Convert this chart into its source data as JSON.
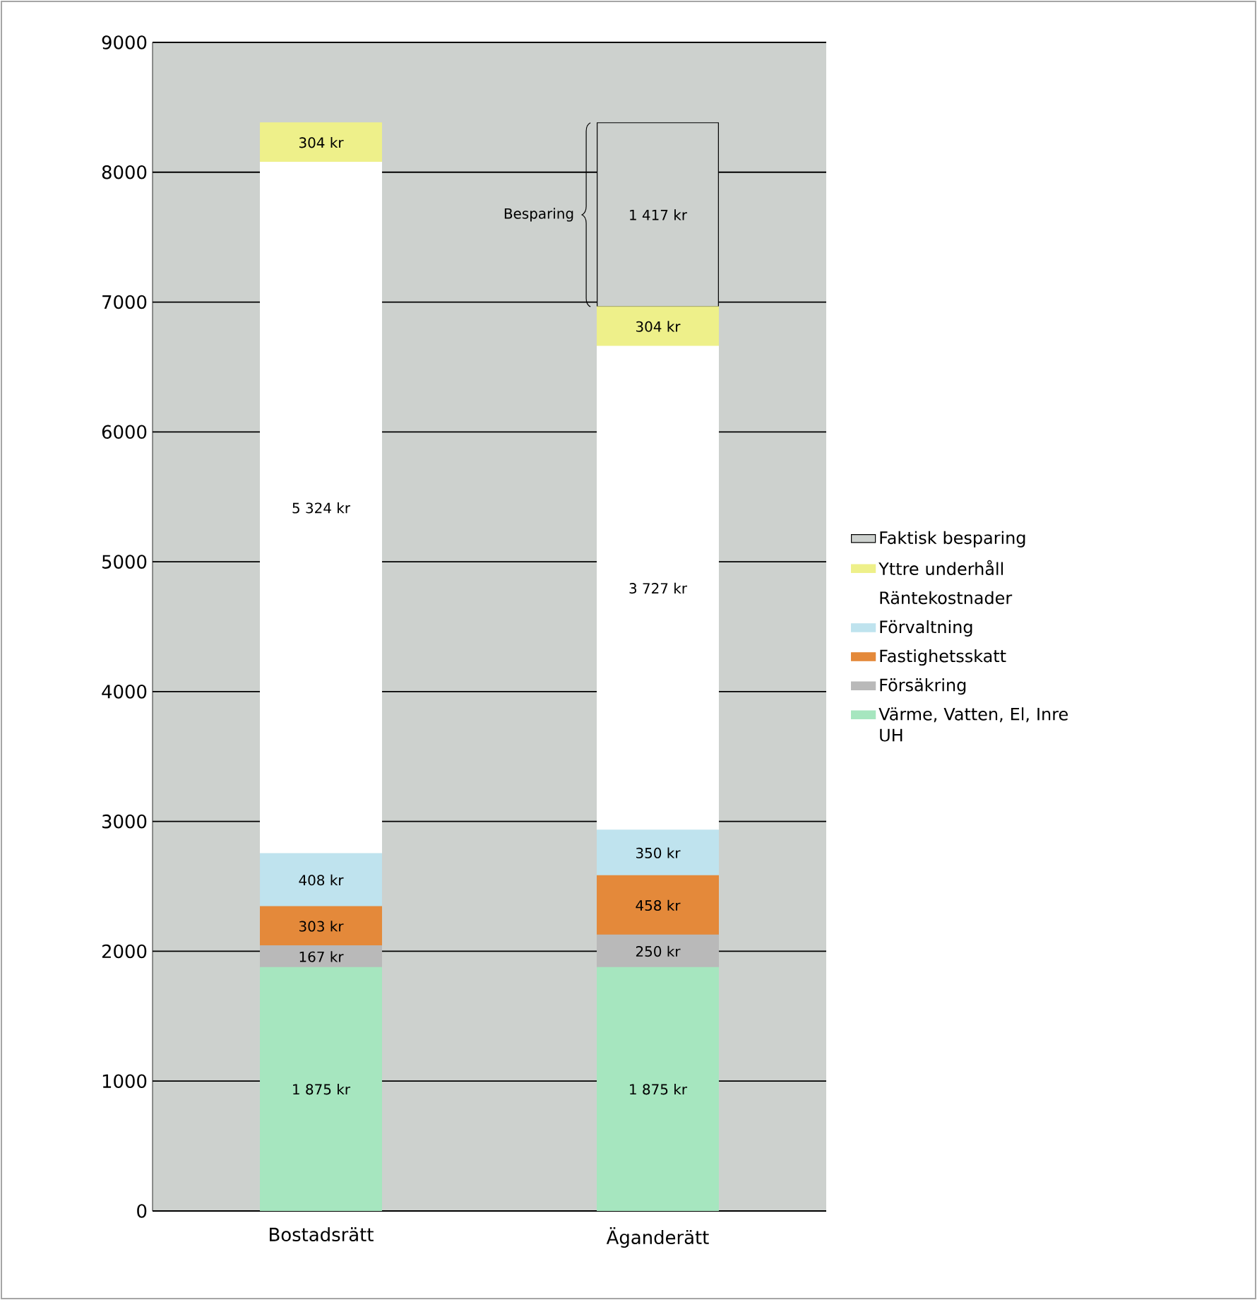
{
  "chart_data": {
    "type": "bar",
    "stacked": true,
    "categories": [
      "Bostadsrätt",
      "Äganderätt"
    ],
    "series": [
      {
        "name": "Värme, Vatten, El, Inre UH",
        "color": "#a6e6bf",
        "values": [
          1875,
          1875
        ],
        "value_labels": [
          "1 875 kr",
          "1 875 kr"
        ]
      },
      {
        "name": "Försäkring",
        "color": "#b9b9b9",
        "values": [
          167,
          250
        ],
        "value_labels": [
          "167 kr",
          "250 kr"
        ]
      },
      {
        "name": "Fastighetsskatt",
        "color": "#e4893a",
        "values": [
          303,
          458
        ],
        "value_labels": [
          "303 kr",
          "458 kr"
        ]
      },
      {
        "name": "Förvaltning",
        "color": "#bfe3ee",
        "values": [
          408,
          350
        ],
        "value_labels": [
          "408 kr",
          "350 kr"
        ]
      },
      {
        "name": "Räntekostnader",
        "color": "#ffffff",
        "values": [
          5324,
          3727
        ],
        "value_labels": [
          "5 324 kr",
          "3 727 kr"
        ]
      },
      {
        "name": "Yttre underhåll",
        "color": "#eef08a",
        "values": [
          304,
          304
        ],
        "value_labels": [
          "304 kr",
          "304 kr"
        ]
      },
      {
        "name": "Faktisk besparing",
        "color": "#cdd1ce",
        "values": [
          null,
          1417
        ],
        "value_labels": [
          null,
          "1 417 kr"
        ]
      }
    ],
    "ylim": [
      0,
      9000
    ],
    "yticks": [
      0,
      1000,
      2000,
      3000,
      4000,
      5000,
      6000,
      7000,
      8000,
      9000
    ],
    "grid": "y",
    "legend": "right",
    "annotations": [
      "Besparing"
    ]
  }
}
